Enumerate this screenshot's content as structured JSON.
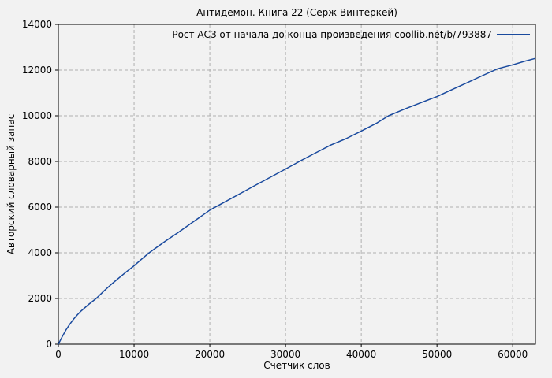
{
  "title": "Антидемон. Книга 22 (Серж Винтеркей)",
  "legend": {
    "label": "Рост АСЗ от начала до конца произведения coollib.net/b/793887"
  },
  "axes": {
    "x_label": "Счетчик слов",
    "y_label": "Авторский словарный запас"
  },
  "colors": {
    "line": "#1a4a9e",
    "background": "#f2f2f2",
    "grid": "#b0b0b0",
    "frame": "#000000"
  },
  "chart_data": {
    "type": "line",
    "title": "Антидемон. Книга 22 (Серж Винтеркей)",
    "xlabel": "Счетчик слов",
    "ylabel": "Авторский словарный запас",
    "xlim": [
      0,
      63000
    ],
    "ylim": [
      0,
      14000
    ],
    "xticks": [
      0,
      10000,
      20000,
      30000,
      40000,
      50000,
      60000
    ],
    "yticks": [
      0,
      2000,
      4000,
      6000,
      8000,
      10000,
      12000,
      14000
    ],
    "grid": true,
    "legend_position": "top-right-inside",
    "series": [
      {
        "name": "Рост АСЗ от начала до конца произведения coollib.net/b/793887",
        "color": "#1a4a9e",
        "points": [
          [
            0,
            0
          ],
          [
            500,
            320
          ],
          [
            1000,
            620
          ],
          [
            1500,
            870
          ],
          [
            2000,
            1090
          ],
          [
            2500,
            1280
          ],
          [
            3000,
            1450
          ],
          [
            4000,
            1740
          ],
          [
            5000,
            2000
          ],
          [
            6000,
            2320
          ],
          [
            7000,
            2620
          ],
          [
            8000,
            2900
          ],
          [
            9000,
            3170
          ],
          [
            10000,
            3430
          ],
          [
            11000,
            3720
          ],
          [
            12000,
            4000
          ],
          [
            14000,
            4480
          ],
          [
            16000,
            4930
          ],
          [
            18000,
            5400
          ],
          [
            20000,
            5870
          ],
          [
            22000,
            6230
          ],
          [
            24000,
            6590
          ],
          [
            26000,
            6950
          ],
          [
            28000,
            7310
          ],
          [
            30000,
            7670
          ],
          [
            32000,
            8030
          ],
          [
            34000,
            8380
          ],
          [
            36000,
            8720
          ],
          [
            38000,
            9000
          ],
          [
            40000,
            9330
          ],
          [
            42000,
            9670
          ],
          [
            43600,
            10000
          ],
          [
            46000,
            10330
          ],
          [
            48000,
            10590
          ],
          [
            50000,
            10840
          ],
          [
            52000,
            11150
          ],
          [
            54000,
            11450
          ],
          [
            56000,
            11760
          ],
          [
            58000,
            12060
          ],
          [
            60000,
            12230
          ],
          [
            61500,
            12380
          ],
          [
            63000,
            12510
          ]
        ]
      }
    ]
  }
}
